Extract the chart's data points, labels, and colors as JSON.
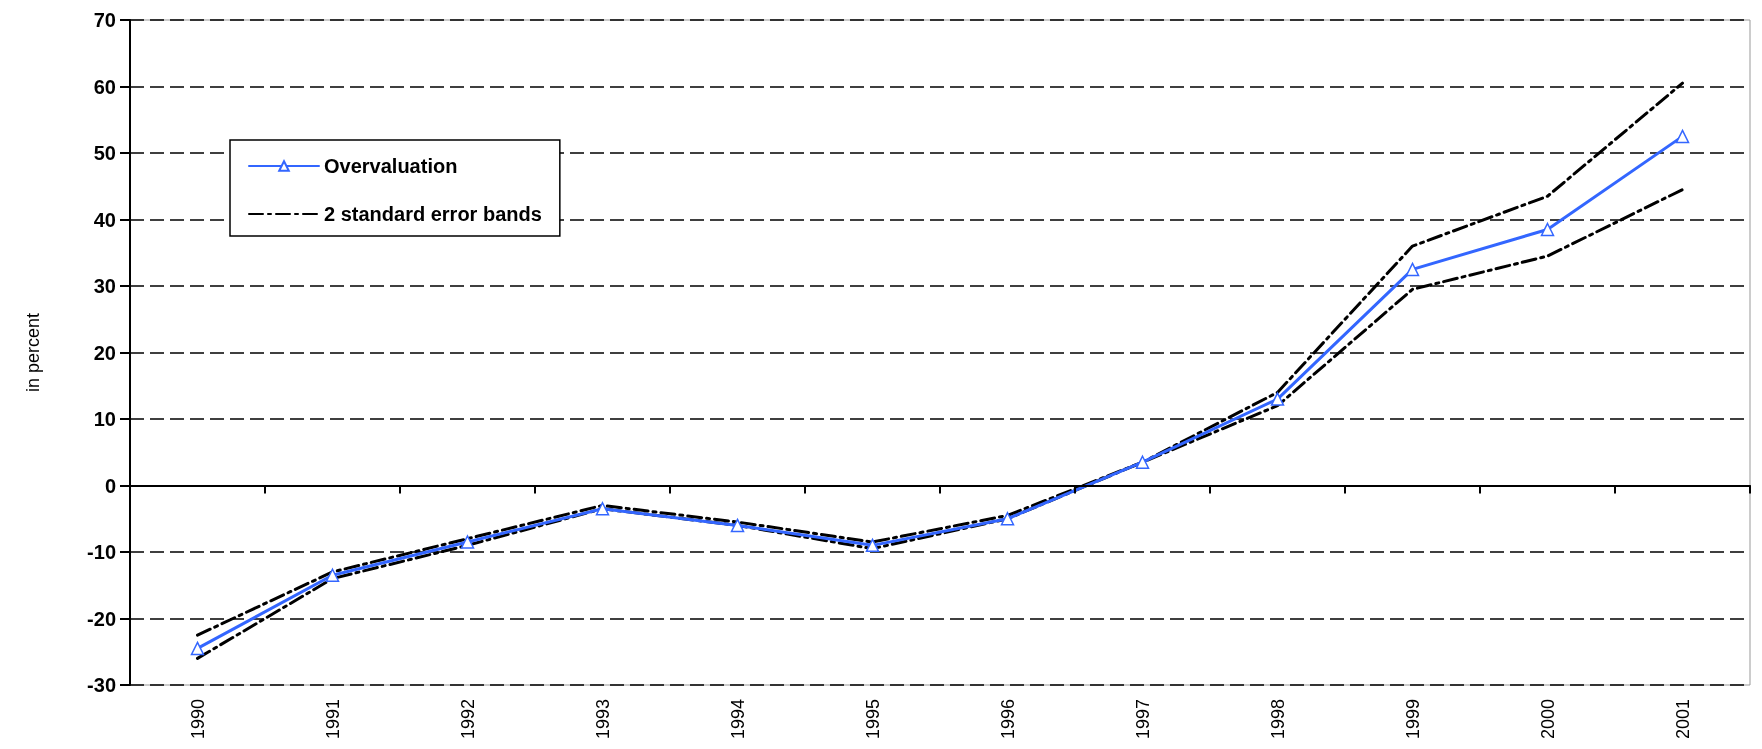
{
  "chart_data": {
    "type": "line",
    "ylabel": "in percent",
    "categories": [
      "1990",
      "1991",
      "1992",
      "1993",
      "1994",
      "1995",
      "1996",
      "1997",
      "1998",
      "1999",
      "2000",
      "2001"
    ],
    "series": [
      {
        "name": "Overvaluation",
        "color": "#3366ff",
        "marker": "triangle",
        "line_style": "solid",
        "values": [
          -24.5,
          -13.5,
          -8.5,
          -3.5,
          -6,
          -9,
          -5,
          3.5,
          13,
          32.5,
          38.5,
          52.5
        ]
      },
      {
        "name": "2 standard error bands",
        "color": "#000000",
        "marker": "none",
        "line_style": "dashed",
        "values": [
          -22.5,
          -13,
          -8,
          -3,
          -5.5,
          -8.5,
          -4.5,
          3.5,
          14,
          36,
          43.5,
          60.5
        ]
      },
      {
        "color": "#000000",
        "marker": "none",
        "line_style": "dashed",
        "values": [
          -26,
          -14,
          -9,
          -3.5,
          -6,
          -9.5,
          -5,
          3.5,
          12,
          29.5,
          34.5,
          44.5
        ]
      }
    ],
    "ylim": [
      -30,
      70
    ],
    "yticks": [
      -30,
      -20,
      -10,
      0,
      10,
      20,
      30,
      40,
      50,
      60,
      70
    ],
    "grid": "y",
    "legend": "top left"
  }
}
